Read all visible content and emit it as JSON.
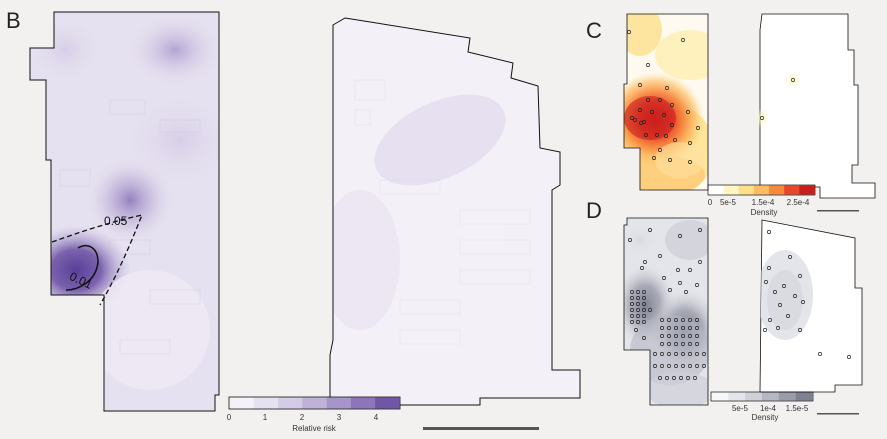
{
  "panels": {
    "B": {
      "letter": "B"
    },
    "C": {
      "letter": "C"
    },
    "D": {
      "letter": "D"
    }
  },
  "panelB": {
    "contour_labels": [
      "0.05",
      "0.01"
    ],
    "colorbar": {
      "ticks": [
        "0",
        "1",
        "2",
        "3",
        "4"
      ],
      "label": "Relative risk",
      "colors": [
        "#f4f2f8",
        "#e6e1f0",
        "#d4cce6",
        "#bfb2d9",
        "#a794ca",
        "#8c76b9",
        "#6f56a6"
      ]
    }
  },
  "panelC": {
    "colorbar": {
      "ticks": [
        "0",
        "5e-5",
        "1.5e-4",
        "2.5e-4"
      ],
      "label": "Density",
      "colors": [
        "#ffffff",
        "#fff6c4",
        "#fee08b",
        "#fdbb62",
        "#f88a3c",
        "#e9472c",
        "#c81e1e"
      ]
    }
  },
  "panelD": {
    "colorbar": {
      "ticks": [
        "5e-5",
        "1e-4",
        "1.5e-5"
      ],
      "label": "Density",
      "colors": [
        "#f7f7f9",
        "#e4e5ea",
        "#cfd0d8",
        "#b5b7c3",
        "#9a9caa",
        "#7f8191"
      ]
    }
  }
}
